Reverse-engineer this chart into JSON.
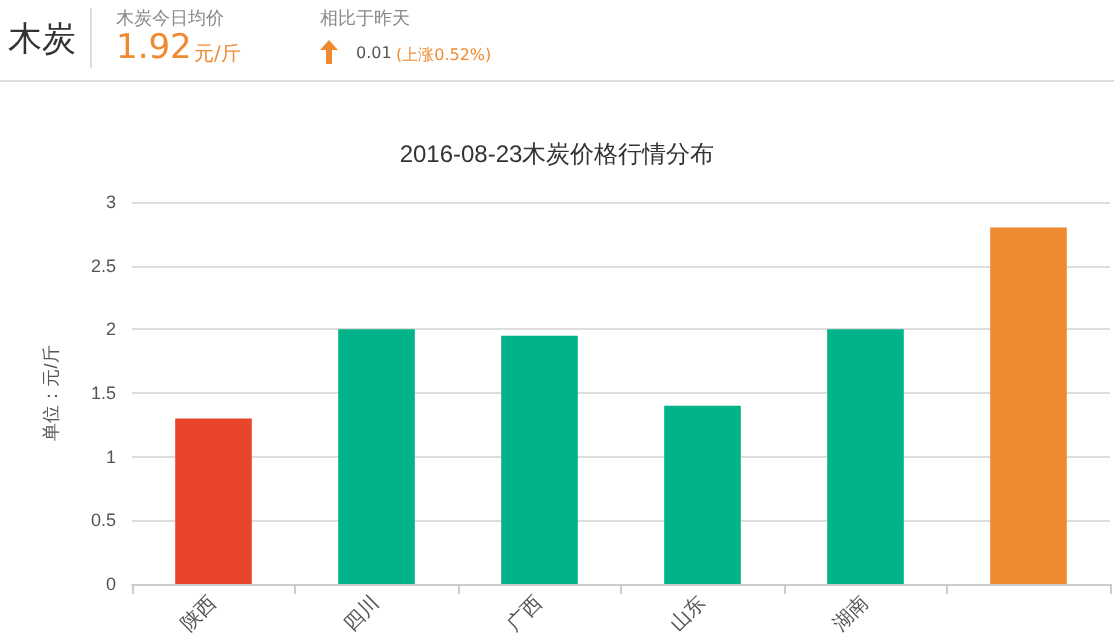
{
  "chart_data": {
    "type": "bar",
    "title": "2016-08-23木炭价格行情分布",
    "ylabel": "单位：元/斤",
    "categories": [
      "陕西",
      "四川",
      "广西",
      "山东",
      "湖南",
      null
    ],
    "values": [
      1.3,
      2.0,
      1.95,
      1.4,
      2.0,
      2.8
    ],
    "colors": [
      "#e8452c",
      "#00b388",
      "#00b388",
      "#00b388",
      "#00b388",
      "#f08a30"
    ],
    "ylim": [
      0,
      3
    ],
    "yticks": [
      0,
      0.5,
      1,
      1.5,
      2,
      2.5,
      3
    ],
    "grid": "y",
    "annotations": [
      "木炭",
      "木炭今日均价",
      "1.92",
      "元/斤",
      "相比于昨天",
      "0.01",
      "(上涨0.52%)"
    ]
  }
}
